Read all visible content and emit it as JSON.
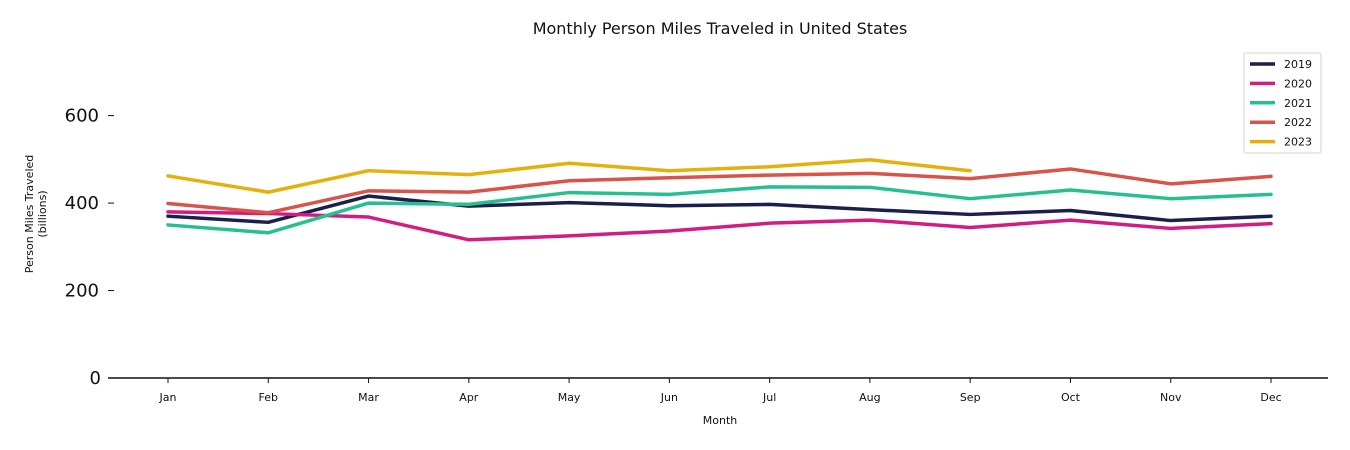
{
  "chart_data": {
    "type": "line",
    "title": "Monthly Person Miles Traveled in United States",
    "xlabel": "Month",
    "ylabel": "Person Miles Traveled\n(billions)",
    "categories": [
      "Jan",
      "Feb",
      "Mar",
      "Apr",
      "May",
      "Jun",
      "Jul",
      "Aug",
      "Sep",
      "Oct",
      "Nov",
      "Dec"
    ],
    "yticks": [
      0,
      200,
      400,
      600
    ],
    "ylim": [
      0,
      750
    ],
    "grid": false,
    "legend_position": "top-right",
    "series": [
      {
        "name": "2019",
        "color": "#1b1f4b",
        "values": [
          370,
          356,
          416,
          393,
          401,
          394,
          397,
          385,
          374,
          383,
          360,
          370
        ]
      },
      {
        "name": "2020",
        "color": "#d11d82",
        "values": [
          380,
          376,
          368,
          316,
          325,
          336,
          354,
          361,
          344,
          361,
          342,
          353
        ]
      },
      {
        "name": "2021",
        "color": "#26c08f",
        "values": [
          350,
          332,
          400,
          397,
          424,
          420,
          437,
          436,
          410,
          430,
          410,
          420
        ]
      },
      {
        "name": "2022",
        "color": "#d9534a",
        "values": [
          399,
          378,
          428,
          425,
          451,
          458,
          464,
          468,
          456,
          478,
          444,
          461
        ]
      },
      {
        "name": "2023",
        "color": "#e3b10a",
        "values": [
          462,
          425,
          474,
          465,
          491,
          474,
          483,
          499,
          474,
          null,
          null,
          null
        ]
      }
    ]
  }
}
